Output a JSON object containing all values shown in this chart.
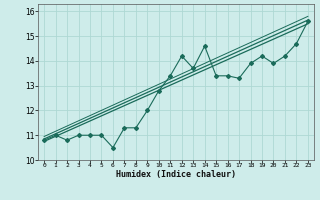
{
  "xlabel": "Humidex (Indice chaleur)",
  "bg_color": "#ceecea",
  "grid_color": "#aed8d4",
  "line_color": "#1a6b5a",
  "xlim": [
    -0.5,
    23.5
  ],
  "ylim": [
    10,
    16.3
  ],
  "xticks": [
    0,
    1,
    2,
    3,
    4,
    5,
    6,
    7,
    8,
    9,
    10,
    11,
    12,
    13,
    14,
    15,
    16,
    17,
    18,
    19,
    20,
    21,
    22,
    23
  ],
  "yticks": [
    10,
    11,
    12,
    13,
    14,
    15,
    16
  ],
  "scatter_x": [
    0,
    1,
    2,
    3,
    4,
    5,
    6,
    7,
    8,
    9,
    10,
    11,
    12,
    13,
    14,
    15,
    16,
    17,
    18,
    19,
    20,
    21,
    22,
    23
  ],
  "scatter_y": [
    10.8,
    11.0,
    10.8,
    11.0,
    11.0,
    11.0,
    10.5,
    11.3,
    11.3,
    12.0,
    12.8,
    13.4,
    14.2,
    13.7,
    14.6,
    13.4,
    13.4,
    13.3,
    13.9,
    14.2,
    13.9,
    14.2,
    14.7,
    15.6
  ],
  "line1_x": [
    0,
    23
  ],
  "line1_y": [
    10.75,
    15.5
  ],
  "line2_x": [
    0,
    23
  ],
  "line2_y": [
    10.85,
    15.65
  ],
  "line3_x": [
    0,
    23
  ],
  "line3_y": [
    10.95,
    15.8
  ]
}
